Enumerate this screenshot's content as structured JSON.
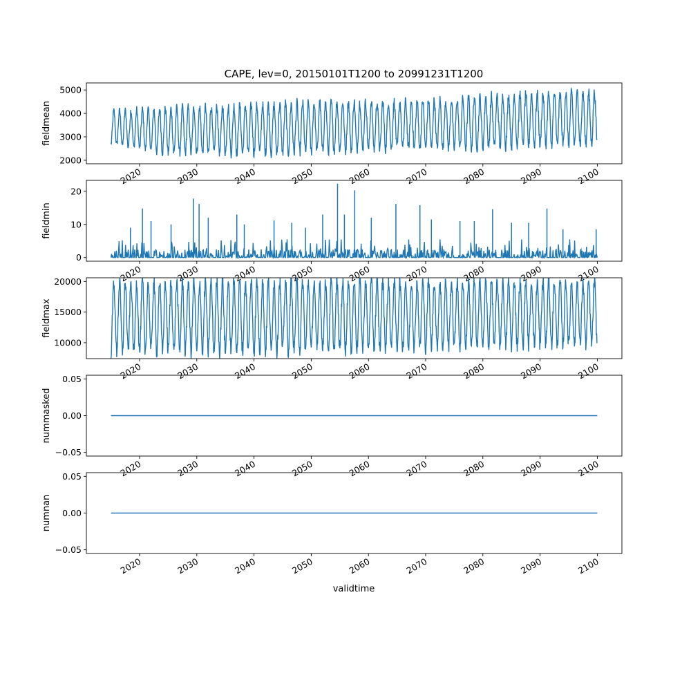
{
  "title": "CAPE, lev=0, 20150101T1200 to 20991231T1200",
  "xlabel": "validtime",
  "chart_data": [
    {
      "type": "line",
      "ylabel": "fieldmean",
      "color": "#1f77b4",
      "xlim": [
        2010.7,
        2104.3
      ],
      "ylim": [
        1850,
        5300
      ],
      "yticks": [
        2000,
        3000,
        4000,
        5000
      ],
      "ytick_labels": [
        "2000",
        "3000",
        "4000",
        "5000"
      ],
      "xticks": [
        2020,
        2030,
        2040,
        2050,
        2060,
        2070,
        2080,
        2090,
        2100
      ],
      "xtick_labels": [
        "2020",
        "2030",
        "2040",
        "2050",
        "2060",
        "2070",
        "2080",
        "2090",
        "2100"
      ],
      "x_range": [
        2015.0,
        2100.0
      ],
      "annual_cycle": {
        "years": [
          2015,
          2025,
          2035,
          2045,
          2055,
          2065,
          2075,
          2085,
          2099
        ],
        "low_envelope": [
          2700,
          2300,
          2300,
          2300,
          2400,
          2500,
          2500,
          2600,
          2700
        ],
        "high_envelope": [
          4100,
          4200,
          4300,
          4400,
          4500,
          4500,
          4600,
          4800,
          4900
        ]
      },
      "extremes": {
        "min": 2000,
        "max": 5100
      }
    },
    {
      "type": "line",
      "ylabel": "fieldmin",
      "color": "#1f77b4",
      "xlim": [
        2010.7,
        2104.3
      ],
      "ylim": [
        -1.1,
        23.3
      ],
      "yticks": [
        0,
        10,
        20
      ],
      "ytick_labels": [
        "0",
        "10",
        "20"
      ],
      "xticks": [
        2020,
        2030,
        2040,
        2050,
        2060,
        2070,
        2080,
        2090,
        2100
      ],
      "xtick_labels": [
        "2020",
        "2030",
        "2040",
        "2050",
        "2060",
        "2070",
        "2080",
        "2090",
        "2100"
      ],
      "x_range": [
        2015.0,
        2100.0
      ],
      "baseline": [
        0,
        2.5
      ],
      "spikes": [
        {
          "x": 2018.4,
          "y": 9.0
        },
        {
          "x": 2020.5,
          "y": 14.8
        },
        {
          "x": 2022.0,
          "y": 11.0
        },
        {
          "x": 2025.5,
          "y": 10.0
        },
        {
          "x": 2029.4,
          "y": 17.8
        },
        {
          "x": 2030.4,
          "y": 16.2
        },
        {
          "x": 2032.0,
          "y": 12.0
        },
        {
          "x": 2037.0,
          "y": 13.0
        },
        {
          "x": 2038.3,
          "y": 10.0
        },
        {
          "x": 2043.5,
          "y": 11.2
        },
        {
          "x": 2046.6,
          "y": 10.5
        },
        {
          "x": 2049.0,
          "y": 9.0
        },
        {
          "x": 2052.0,
          "y": 13.0
        },
        {
          "x": 2054.6,
          "y": 22.3
        },
        {
          "x": 2055.8,
          "y": 13.0
        },
        {
          "x": 2057.6,
          "y": 20.3
        },
        {
          "x": 2060.5,
          "y": 12.0
        },
        {
          "x": 2064.8,
          "y": 16.2
        },
        {
          "x": 2069.0,
          "y": 15.8
        },
        {
          "x": 2071.0,
          "y": 11.5
        },
        {
          "x": 2076.0,
          "y": 11.0
        },
        {
          "x": 2078.5,
          "y": 11.0
        },
        {
          "x": 2081.7,
          "y": 14.6
        },
        {
          "x": 2085.0,
          "y": 10.5
        },
        {
          "x": 2088.0,
          "y": 10.5
        },
        {
          "x": 2091.2,
          "y": 14.8
        },
        {
          "x": 2094.0,
          "y": 8.5
        },
        {
          "x": 2099.8,
          "y": 8.5
        }
      ]
    },
    {
      "type": "line",
      "ylabel": "fieldmax",
      "color": "#1f77b4",
      "xlim": [
        2010.7,
        2104.3
      ],
      "ylim": [
        7400,
        20600
      ],
      "yticks": [
        10000,
        15000,
        20000
      ],
      "ytick_labels": [
        "10000",
        "15000",
        "20000"
      ],
      "xticks": [
        2020,
        2030,
        2040,
        2050,
        2060,
        2070,
        2080,
        2090,
        2100
      ],
      "xtick_labels": [
        "2020",
        "2030",
        "2040",
        "2050",
        "2060",
        "2070",
        "2080",
        "2090",
        "2100"
      ],
      "x_range": [
        2015.0,
        2100.0
      ],
      "annual_cycle": {
        "years": [
          2015,
          2030,
          2045,
          2060,
          2075,
          2090,
          2099
        ],
        "low_envelope": [
          8600,
          8500,
          8700,
          9000,
          9300,
          9600,
          9800
        ],
        "high_envelope": [
          19900,
          20000,
          20000,
          20000,
          20000,
          20000,
          20000
        ]
      }
    },
    {
      "type": "line",
      "ylabel": "nummasked",
      "color": "#1f77b4",
      "xlim": [
        2010.7,
        2104.3
      ],
      "ylim": [
        -0.055,
        0.055
      ],
      "yticks": [
        -0.05,
        0.0,
        0.05
      ],
      "ytick_labels": [
        "−0.05",
        "0.00",
        "0.05"
      ],
      "xticks": [
        2020,
        2030,
        2040,
        2050,
        2060,
        2070,
        2080,
        2090,
        2100
      ],
      "xtick_labels": [
        "2020",
        "2030",
        "2040",
        "2050",
        "2060",
        "2070",
        "2080",
        "2090",
        "2100"
      ],
      "x": [
        2015.0,
        2100.0
      ],
      "y": [
        0.0,
        0.0
      ]
    },
    {
      "type": "line",
      "ylabel": "numnan",
      "color": "#1f77b4",
      "xlim": [
        2010.7,
        2104.3
      ],
      "ylim": [
        -0.055,
        0.055
      ],
      "yticks": [
        -0.05,
        0.0,
        0.05
      ],
      "ytick_labels": [
        "−0.05",
        "0.00",
        "0.05"
      ],
      "xticks": [
        2020,
        2030,
        2040,
        2050,
        2060,
        2070,
        2080,
        2090,
        2100
      ],
      "xtick_labels": [
        "2020",
        "2030",
        "2040",
        "2050",
        "2060",
        "2070",
        "2080",
        "2090",
        "2100"
      ],
      "x": [
        2015.0,
        2100.0
      ],
      "y": [
        0.0,
        0.0
      ]
    }
  ]
}
